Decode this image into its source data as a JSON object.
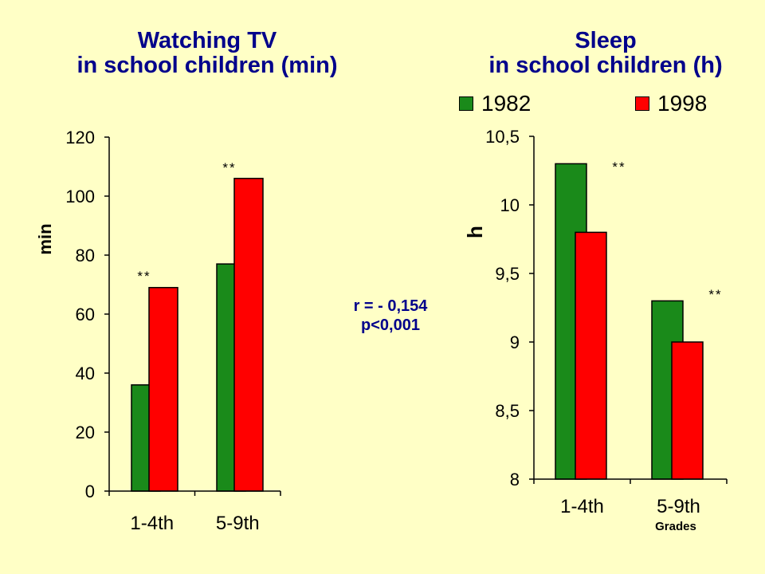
{
  "titles": {
    "tv_line1": "Watching TV",
    "tv_line2": "in school children (min)",
    "sleep_line1": "Sleep",
    "sleep_line2": "in school children (h)"
  },
  "legend": {
    "a": "1982",
    "b": "1998"
  },
  "stats": {
    "r": "r = - 0,154",
    "p": "p<0,001"
  },
  "colors": {
    "series_1982": "#1A8A1A",
    "series_1998": "#FF0000",
    "title": "#00008B",
    "background": "#FFFFC6"
  },
  "chart_data": [
    {
      "type": "bar",
      "title": "Watching TV in school children (min)",
      "ylabel": "min",
      "xlabel": "",
      "categories": [
        "1-4th",
        "5-9th"
      ],
      "series": [
        {
          "name": "1982",
          "values": [
            36,
            77
          ]
        },
        {
          "name": "1998",
          "values": [
            69,
            106
          ]
        }
      ],
      "ylim": [
        0,
        120
      ],
      "yticks": [
        0,
        20,
        40,
        60,
        80,
        100,
        120
      ],
      "ytick_labels": [
        "0",
        "20",
        "40",
        "60",
        "80",
        "100",
        "120"
      ],
      "annotations": [
        "**",
        "**"
      ],
      "grid": false
    },
    {
      "type": "bar",
      "title": "Sleep in school children (h)",
      "ylabel": "h",
      "xlabel": "Grades",
      "categories": [
        "1-4th",
        "5-9th"
      ],
      "series": [
        {
          "name": "1982",
          "values": [
            10.3,
            9.3
          ]
        },
        {
          "name": "1998",
          "values": [
            9.8,
            9.0
          ]
        }
      ],
      "ylim": [
        8,
        10.5
      ],
      "yticks": [
        8,
        8.5,
        9,
        9.5,
        10,
        10.5
      ],
      "ytick_labels": [
        "8",
        "8,5",
        "9",
        "9,5",
        "10",
        "10,5"
      ],
      "annotations": [
        "**",
        "**"
      ],
      "grid": false,
      "legend": "top"
    }
  ]
}
